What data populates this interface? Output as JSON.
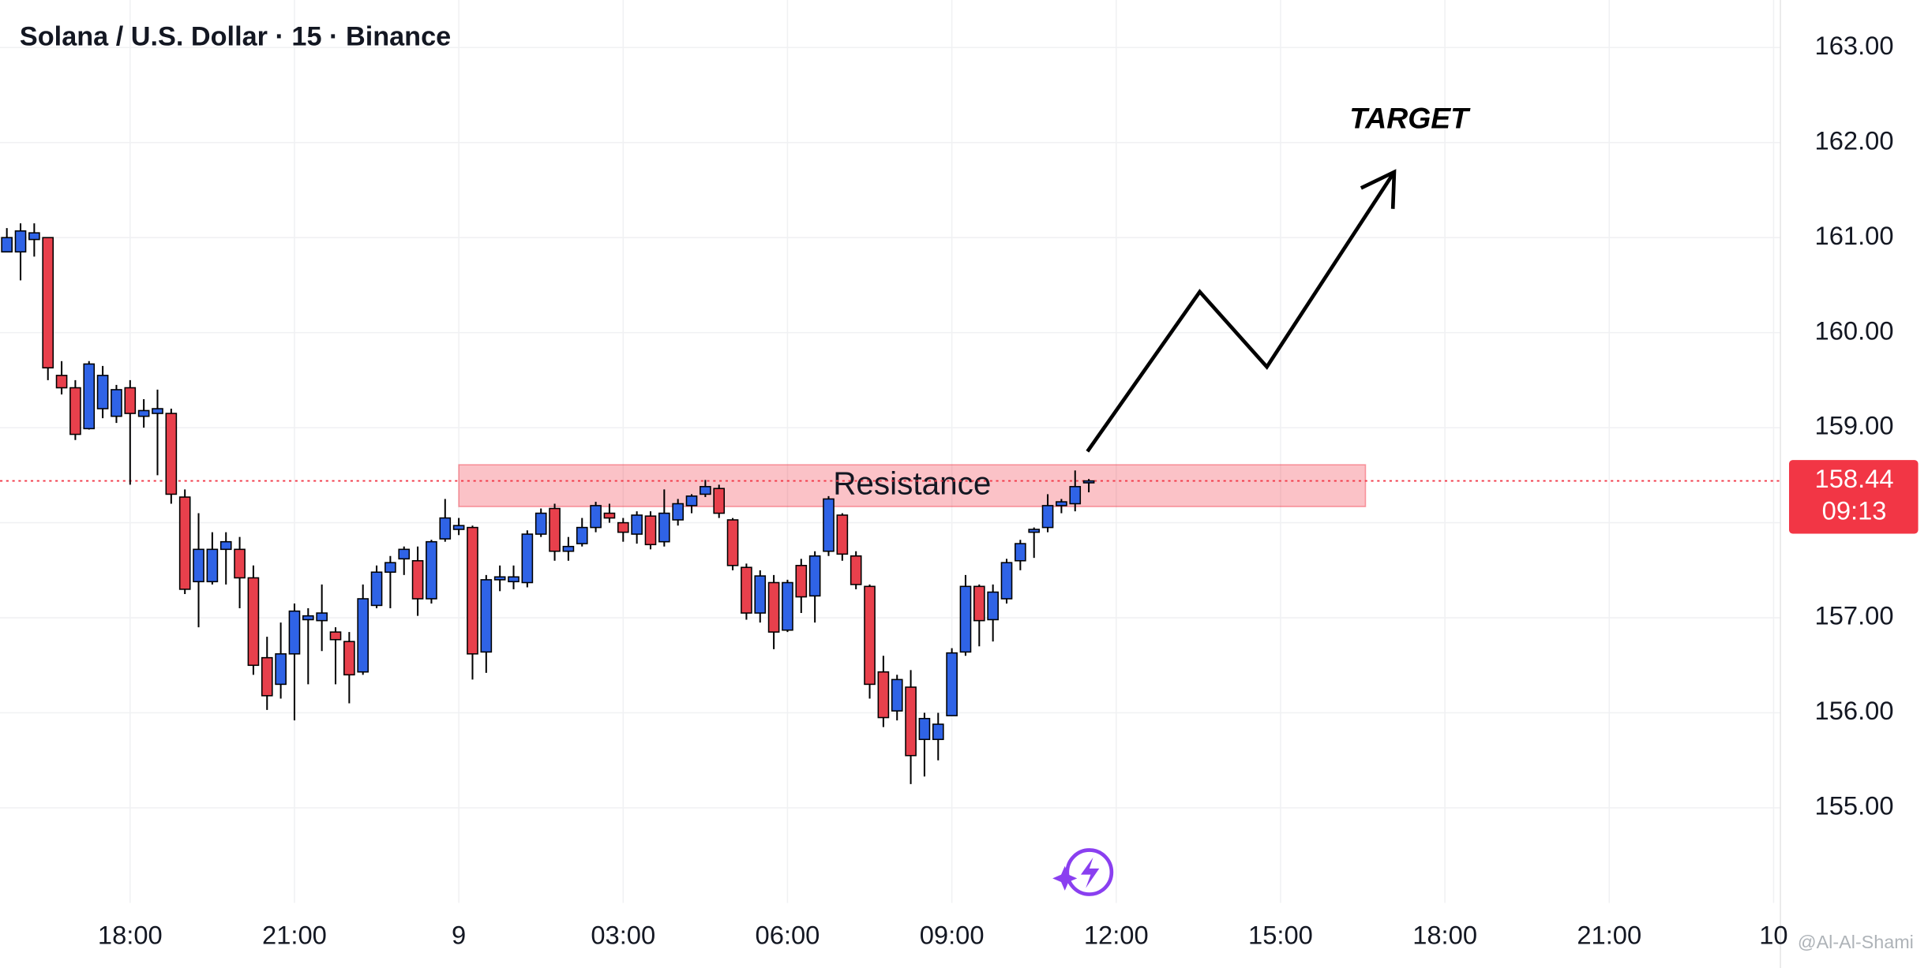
{
  "chart_data": {
    "type": "candlestick",
    "title": "Solana / U.S. Dollar · 15 · Binance",
    "x": [
      "15:45",
      "16:00",
      "16:15",
      "16:30",
      "16:45",
      "17:00",
      "17:15",
      "17:30",
      "17:45",
      "18:00",
      "18:15",
      "18:30",
      "18:45",
      "19:00",
      "19:15",
      "19:30",
      "19:45",
      "20:00",
      "20:15",
      "20:30",
      "20:45",
      "21:00",
      "21:15",
      "21:30",
      "21:45",
      "22:00",
      "22:15",
      "22:30",
      "22:45",
      "23:00",
      "23:15",
      "23:30",
      "23:45",
      "00:00",
      "00:15",
      "00:30",
      "00:45",
      "01:00",
      "01:15",
      "01:30",
      "01:45",
      "02:00",
      "02:15",
      "02:30",
      "02:45",
      "03:00",
      "03:15",
      "03:30",
      "03:45",
      "04:00",
      "04:15",
      "04:30",
      "04:45",
      "05:00",
      "05:15",
      "05:30",
      "05:45",
      "06:00",
      "06:15",
      "06:30",
      "06:45",
      "07:00",
      "07:15",
      "07:30",
      "07:45",
      "08:00",
      "08:15",
      "08:30",
      "08:45",
      "09:00",
      "09:15",
      "09:30",
      "09:45",
      "10:00",
      "10:15",
      "10:30",
      "10:45",
      "11:00",
      "11:15",
      "11:30"
    ],
    "open": [
      160.85,
      160.85,
      160.98,
      161.0,
      159.55,
      159.42,
      158.99,
      159.2,
      159.12,
      159.42,
      159.12,
      159.15,
      159.15,
      158.27,
      157.38,
      157.38,
      157.72,
      157.72,
      157.42,
      156.58,
      156.3,
      156.62,
      156.98,
      156.97,
      156.85,
      156.75,
      156.43,
      157.13,
      157.48,
      157.62,
      157.6,
      157.2,
      157.83,
      157.93,
      157.95,
      156.64,
      157.4,
      157.38,
      157.37,
      157.88,
      158.15,
      157.7,
      157.78,
      157.95,
      158.1,
      158.0,
      157.88,
      158.07,
      157.8,
      158.03,
      158.18,
      158.3,
      158.36,
      158.03,
      157.53,
      157.05,
      157.37,
      156.87,
      157.55,
      157.23,
      157.7,
      158.08,
      157.65,
      157.33,
      156.43,
      156.02,
      156.27,
      155.72,
      155.72,
      155.97,
      156.64,
      157.33,
      156.98,
      157.2,
      157.6,
      157.9,
      157.95,
      158.18,
      158.2,
      158.42
    ],
    "high": [
      161.1,
      161.15,
      161.15,
      161.0,
      159.7,
      159.5,
      159.7,
      159.65,
      159.45,
      159.5,
      159.3,
      159.4,
      159.2,
      158.35,
      158.1,
      157.9,
      157.9,
      157.85,
      157.55,
      156.8,
      156.95,
      157.15,
      157.1,
      157.35,
      156.9,
      156.85,
      157.35,
      157.55,
      157.65,
      157.75,
      157.75,
      157.82,
      158.25,
      158.05,
      157.97,
      157.45,
      157.55,
      157.55,
      157.92,
      158.15,
      158.2,
      157.85,
      158.05,
      158.22,
      158.2,
      158.05,
      158.12,
      158.12,
      158.35,
      158.25,
      158.3,
      158.45,
      158.4,
      158.05,
      157.57,
      157.5,
      157.45,
      157.4,
      157.62,
      157.7,
      158.28,
      158.1,
      157.7,
      157.35,
      156.6,
      156.4,
      156.45,
      156.0,
      156.0,
      156.68,
      157.45,
      157.35,
      157.35,
      157.62,
      157.82,
      157.95,
      158.3,
      158.25,
      158.55,
      158.46
    ],
    "low": [
      160.85,
      160.55,
      160.8,
      159.5,
      159.35,
      158.87,
      158.98,
      159.1,
      159.05,
      158.4,
      159.0,
      158.5,
      158.2,
      157.25,
      156.9,
      157.35,
      157.35,
      157.1,
      156.4,
      156.03,
      156.15,
      155.92,
      156.3,
      156.65,
      156.3,
      156.1,
      156.4,
      157.1,
      157.1,
      157.45,
      157.02,
      157.15,
      157.8,
      157.87,
      156.35,
      156.42,
      157.28,
      157.3,
      157.32,
      157.85,
      157.6,
      157.6,
      157.75,
      157.9,
      158.0,
      157.8,
      157.78,
      157.72,
      157.75,
      157.97,
      158.1,
      158.27,
      158.05,
      157.5,
      156.98,
      156.95,
      156.67,
      156.85,
      157.05,
      156.95,
      157.65,
      157.6,
      157.3,
      156.15,
      155.85,
      155.92,
      155.25,
      155.33,
      155.5,
      155.97,
      156.6,
      156.7,
      156.75,
      157.15,
      157.5,
      157.63,
      157.9,
      158.1,
      158.12,
      158.32
    ],
    "close": [
      161.0,
      161.07,
      161.05,
      159.63,
      159.42,
      158.93,
      159.67,
      159.55,
      159.4,
      159.15,
      159.18,
      159.2,
      158.3,
      157.3,
      157.72,
      157.72,
      157.8,
      157.42,
      156.5,
      156.18,
      156.62,
      157.07,
      157.02,
      157.05,
      156.77,
      156.4,
      157.2,
      157.48,
      157.58,
      157.72,
      157.2,
      157.8,
      158.05,
      157.97,
      156.62,
      157.4,
      157.43,
      157.43,
      157.88,
      158.1,
      157.7,
      157.75,
      157.95,
      158.18,
      158.05,
      157.9,
      158.08,
      157.77,
      158.1,
      158.2,
      158.28,
      158.38,
      158.1,
      157.55,
      157.05,
      157.44,
      156.85,
      157.37,
      157.22,
      157.65,
      158.25,
      157.67,
      157.35,
      156.3,
      155.95,
      156.35,
      155.55,
      155.94,
      155.88,
      156.63,
      157.33,
      156.97,
      157.27,
      157.58,
      157.78,
      157.93,
      158.18,
      158.22,
      158.38,
      158.44
    ],
    "up_color": "#2f63e6",
    "down_color": "#e8404c",
    "xlim": [
      -0.5,
      129.5
    ],
    "xticks": [
      {
        "value": 9,
        "label": "18:00"
      },
      {
        "value": 21,
        "label": "21:00"
      },
      {
        "value": 33,
        "label": "9"
      },
      {
        "value": 45,
        "label": "03:00"
      },
      {
        "value": 57,
        "label": "06:00"
      },
      {
        "value": 69,
        "label": "09:00"
      },
      {
        "value": 81,
        "label": "12:00"
      },
      {
        "value": 93,
        "label": "15:00"
      },
      {
        "value": 105,
        "label": "18:00"
      },
      {
        "value": 117,
        "label": "21:00"
      },
      {
        "value": 129,
        "label": "10"
      }
    ],
    "ylim": [
      154.0,
      163.5
    ],
    "yticks": [
      {
        "value": 155,
        "label": "155.00"
      },
      {
        "value": 156,
        "label": "156.00"
      },
      {
        "value": 157,
        "label": "157.00"
      },
      {
        "value": 158,
        "label": "158.00"
      },
      {
        "value": 159,
        "label": "159.00"
      },
      {
        "value": 160,
        "label": "160.00"
      },
      {
        "value": 161,
        "label": "161.00"
      },
      {
        "value": 162,
        "label": "162.00"
      },
      {
        "value": 163,
        "label": "163.00"
      }
    ],
    "grid": true,
    "last_price": 158.44,
    "countdown": "09:13",
    "price_color": "#f23645",
    "zone": {
      "label": "Resistance",
      "x": [
        33,
        99.2
      ],
      "y": [
        158.17,
        158.61
      ],
      "color": "#f23645"
    },
    "projection": {
      "label": "TARGET",
      "x": [
        78.9,
        87.1,
        92.0,
        101.3
      ],
      "y": [
        158.75,
        160.43,
        159.64,
        161.69
      ]
    },
    "watermark": "@Al-Al-Shami"
  }
}
